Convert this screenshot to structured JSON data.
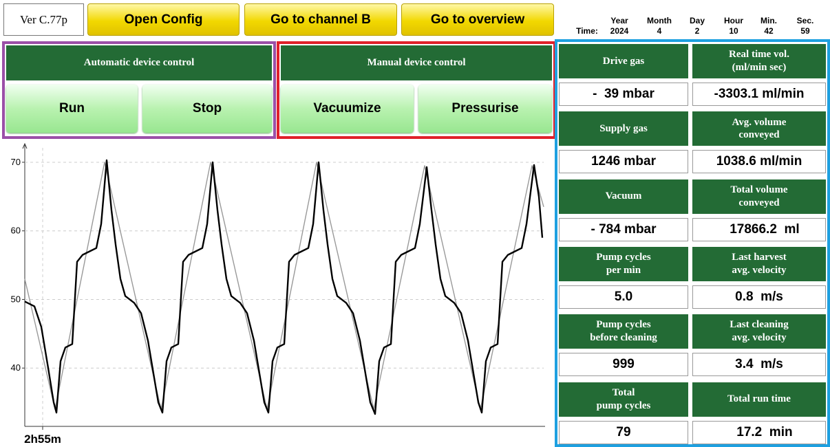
{
  "header": {
    "version": "Ver C.77p",
    "buttons": [
      "Open Config",
      "Go to channel B",
      "Go to overview"
    ],
    "time": {
      "label": "Time:",
      "columns": [
        {
          "name": "Year",
          "value": "2024"
        },
        {
          "name": "Month",
          "value": "4"
        },
        {
          "name": "Day",
          "value": "2"
        },
        {
          "name": "Hour",
          "value": "10"
        },
        {
          "name": "Min.",
          "value": "42"
        },
        {
          "name": "Sec.",
          "value": "59"
        }
      ]
    }
  },
  "automatic": {
    "title": "Automatic device control",
    "buttons": [
      "Run",
      "Stop"
    ]
  },
  "manual": {
    "title": "Manual device control",
    "buttons": [
      "Vacuumize",
      "Pressurise"
    ]
  },
  "readings": [
    {
      "label": "Drive gas",
      "value": "-  39 mbar"
    },
    {
      "label": "Real time vol.\n(ml/min sec)",
      "value": "-3303.1 ml/min"
    },
    {
      "label": "Supply gas",
      "value": "1246 mbar"
    },
    {
      "label": "Avg. volume\nconveyed",
      "value": "1038.6 ml/min"
    },
    {
      "label": "Vacuum",
      "value": "- 784 mbar"
    },
    {
      "label": "Total volume\nconveyed",
      "value": "   17866.2  ml"
    },
    {
      "label": "Pump cycles\nper min",
      "value": "5.0"
    },
    {
      "label": "Last harvest\navg. velocity",
      "value": "0.8  m/s"
    },
    {
      "label": "Pump cycles\nbefore cleaning",
      "value": "999"
    },
    {
      "label": "Last cleaning\navg. velocity",
      "value": "3.4  m/s"
    },
    {
      "label": "Total\npump cycles",
      "value": "79"
    },
    {
      "label": "Total run time",
      "value": "   17.2  min"
    }
  ],
  "chart": {
    "type": "line",
    "xlim": [
      0,
      754
    ],
    "ylim": [
      31.5,
      72.1
    ],
    "yticks": [
      40,
      50,
      60,
      70
    ],
    "xticks": [
      {
        "value": 26,
        "label": "2h55m"
      }
    ],
    "grid": true,
    "series": [
      {
        "color": "#999999",
        "x": [
          0,
          44,
          116,
          198,
          270,
          352,
          424,
          507,
          581,
          662,
          737,
          754
        ],
        "values": [
          53,
          34,
          70,
          34,
          70,
          34,
          70,
          34,
          69.5,
          34,
          69.5,
          63.5
        ]
      },
      {
        "color": "#000000",
        "x": [
          0,
          14,
          24,
          34,
          42,
          46,
          52,
          59,
          69,
          76,
          84,
          94,
          104,
          111,
          119,
          126,
          132,
          139,
          146,
          159,
          169,
          179,
          189,
          194,
          200,
          206,
          213,
          223,
          230,
          238,
          248,
          258,
          265,
          273,
          280,
          286,
          293,
          300,
          313,
          323,
          333,
          343,
          348,
          354,
          360,
          367,
          377,
          384,
          392,
          402,
          412,
          419,
          427,
          434,
          440,
          447,
          454,
          467,
          477,
          487,
          497,
          502,
          509,
          515,
          522,
          532,
          539,
          547,
          557,
          567,
          574,
          584,
          591,
          597,
          604,
          611,
          624,
          634,
          644,
          654,
          659,
          664,
          670,
          677,
          687,
          694,
          702,
          712,
          722,
          729,
          740,
          747,
          752
        ],
        "values": [
          49.7,
          49,
          46,
          40,
          35,
          33.5,
          41,
          43,
          43.5,
          55.5,
          56.5,
          57,
          57.5,
          61,
          70.3,
          63,
          58,
          53,
          50.5,
          49.5,
          48,
          44,
          38,
          35,
          33.5,
          41,
          43,
          43.5,
          55.5,
          56.5,
          57,
          57.5,
          61,
          70,
          63,
          58,
          53,
          50.5,
          49.5,
          48,
          44,
          38,
          35,
          33.5,
          41,
          43,
          43.5,
          55.5,
          56.5,
          57,
          57.5,
          61,
          70,
          63,
          58,
          53,
          50.5,
          49.5,
          48,
          44,
          38,
          35,
          33.3,
          41,
          43,
          43.5,
          55.5,
          56.5,
          57,
          57.5,
          61,
          69.3,
          63,
          58,
          53,
          50.5,
          49.5,
          48,
          44,
          38,
          35,
          33.5,
          41,
          43,
          43.5,
          55.5,
          56.5,
          57,
          57.5,
          61,
          69.6,
          65,
          59
        ]
      }
    ]
  }
}
